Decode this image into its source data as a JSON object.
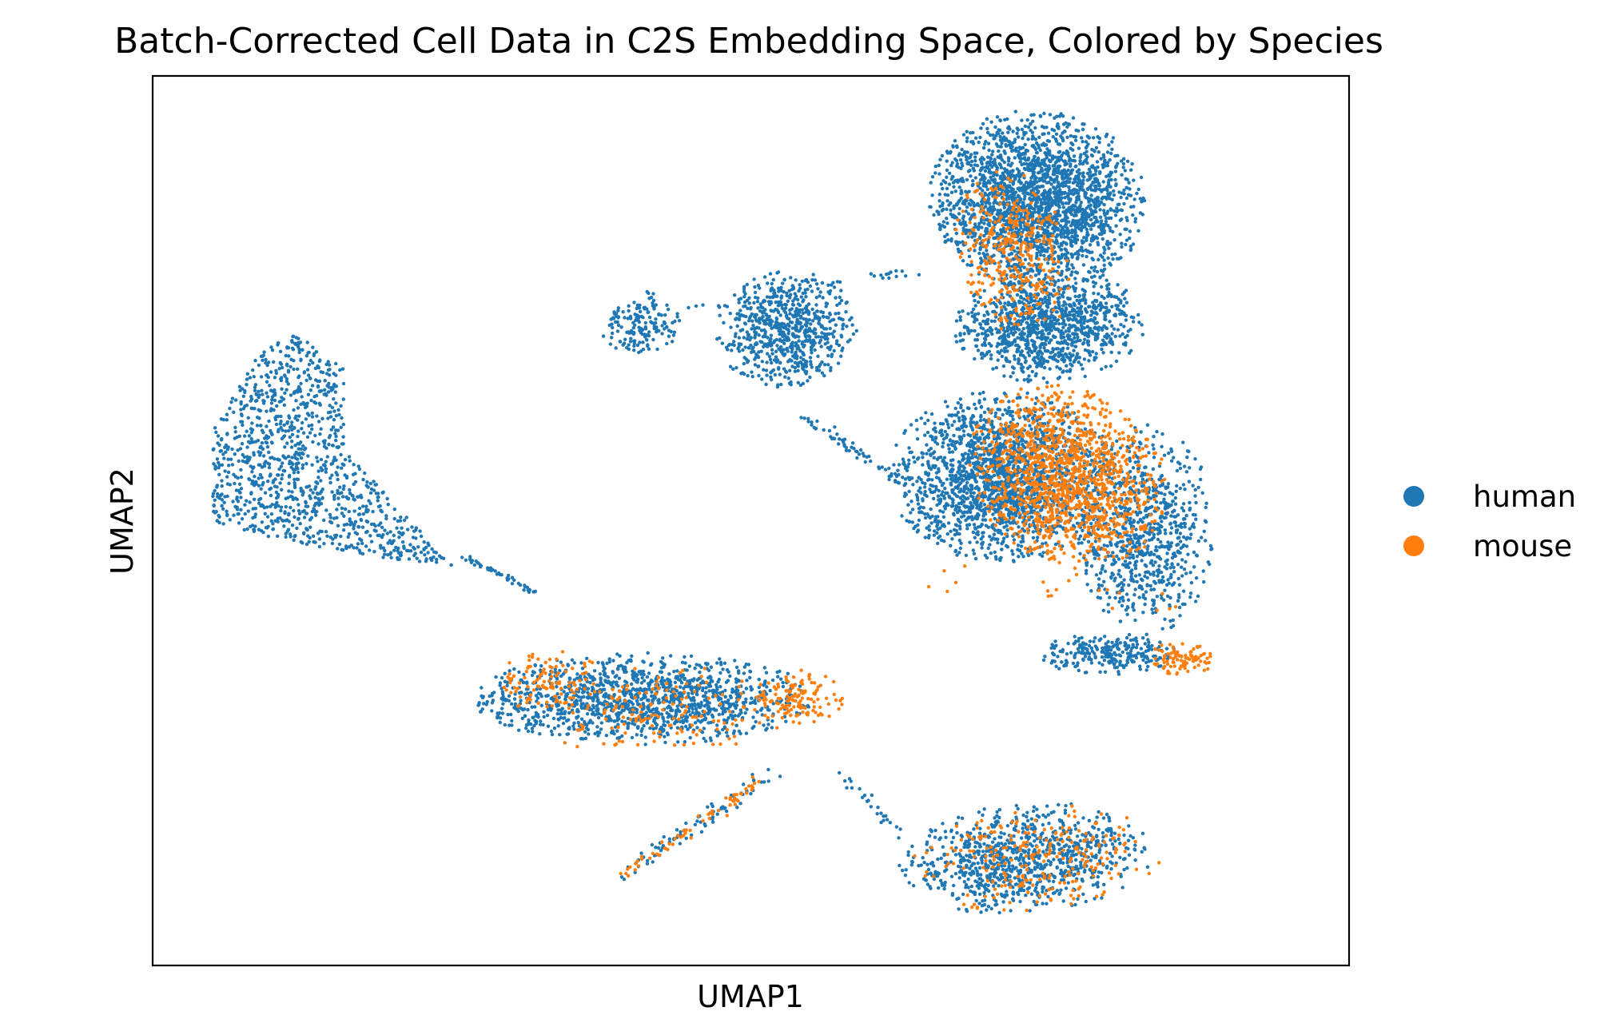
{
  "chart_data": {
    "type": "scatter",
    "title": "Batch-Corrected Cell Data in C2S Embedding Space, Colored by Species",
    "xlabel": "UMAP1",
    "ylabel": "UMAP2",
    "xlim": [
      0,
      100
    ],
    "ylim": [
      0,
      100
    ],
    "x_ticks": "none",
    "y_ticks": "none",
    "grid": false,
    "legend_position": "right",
    "series": [
      {
        "name": "human",
        "color": "#1f77b4"
      },
      {
        "name": "mouse",
        "color": "#ff7f0e"
      }
    ],
    "clusters": [
      {
        "species": "human",
        "n": 1100,
        "shape": "poly",
        "poly": [
          [
            5,
            60
          ],
          [
            9,
            69
          ],
          [
            12,
            71
          ],
          [
            16,
            67
          ],
          [
            16,
            58
          ],
          [
            25,
            45
          ],
          [
            18,
            46
          ],
          [
            10,
            48
          ],
          [
            5,
            50
          ]
        ]
      },
      {
        "species": "human",
        "n": 700,
        "shape": "ellipse",
        "cx": 53,
        "cy": 71.5,
        "rx": 5.5,
        "ry": 6.3,
        "rot": -8
      },
      {
        "species": "human",
        "n": 160,
        "shape": "ellipse",
        "cx": 41,
        "cy": 72,
        "rx": 3.2,
        "ry": 3.6,
        "rot": -25
      },
      {
        "species": "human",
        "n": 30,
        "shape": "line",
        "x1": 45,
        "y1": 74,
        "x2": 64,
        "y2": 78,
        "w": 0.8
      },
      {
        "species": "human",
        "n": 45,
        "shape": "line",
        "x1": 26,
        "y1": 46,
        "x2": 32,
        "y2": 42,
        "w": 0.5
      },
      {
        "species": "human",
        "n": 2300,
        "shape": "ellipse",
        "cx": 74,
        "cy": 86,
        "rx": 8.5,
        "ry": 9.5,
        "rot": 12
      },
      {
        "species": "human",
        "n": 1100,
        "shape": "ellipse",
        "cx": 75,
        "cy": 72,
        "rx": 7.5,
        "ry": 6,
        "rot": 10
      },
      {
        "species": "human",
        "n": 1900,
        "shape": "ellipse",
        "cx": 71,
        "cy": 55,
        "rx": 9,
        "ry": 9,
        "rot": -15
      },
      {
        "species": "human",
        "n": 800,
        "shape": "ellipse",
        "cx": 83,
        "cy": 49,
        "rx": 5.5,
        "ry": 11,
        "rot": 0
      },
      {
        "species": "human",
        "n": 250,
        "shape": "ellipse",
        "cx": 80,
        "cy": 35,
        "rx": 5.5,
        "ry": 2.2,
        "rot": 0
      },
      {
        "species": "human",
        "n": 50,
        "shape": "line",
        "x1": 54,
        "y1": 62,
        "x2": 62,
        "y2": 55,
        "w": 0.8
      },
      {
        "species": "human",
        "n": 1300,
        "shape": "ellipse",
        "cx": 41,
        "cy": 30,
        "rx": 13.5,
        "ry": 4.8,
        "rot": 0
      },
      {
        "species": "human",
        "n": 900,
        "shape": "ellipse",
        "cx": 73,
        "cy": 12,
        "rx": 10,
        "ry": 5.8,
        "rot": 8
      },
      {
        "species": "human",
        "n": 80,
        "shape": "line",
        "x1": 39,
        "y1": 10,
        "x2": 52,
        "y2": 22,
        "w": 1.2
      },
      {
        "species": "human",
        "n": 25,
        "shape": "line",
        "x1": 58,
        "y1": 21,
        "x2": 63,
        "y2": 14,
        "w": 1.0
      },
      {
        "species": "mouse",
        "n": 1300,
        "shape": "ellipse",
        "cx": 76.5,
        "cy": 55,
        "rx": 7.5,
        "ry": 10,
        "rot": 20
      },
      {
        "species": "mouse",
        "n": 350,
        "shape": "ellipse",
        "cx": 72,
        "cy": 80,
        "rx": 4.5,
        "ry": 9,
        "rot": 8
      },
      {
        "species": "mouse",
        "n": 90,
        "shape": "ellipse",
        "cx": 86,
        "cy": 34.5,
        "rx": 2.6,
        "ry": 1.8,
        "rot": 0
      },
      {
        "species": "mouse",
        "n": 100,
        "shape": "ellipse",
        "cx": 33,
        "cy": 32,
        "rx": 4.5,
        "ry": 3.5,
        "rot": 0
      },
      {
        "species": "mouse",
        "n": 160,
        "shape": "ellipse",
        "cx": 42,
        "cy": 29,
        "rx": 11,
        "ry": 5,
        "rot": 0
      },
      {
        "species": "mouse",
        "n": 130,
        "shape": "ellipse",
        "cx": 54,
        "cy": 30,
        "rx": 3.5,
        "ry": 3,
        "rot": 0
      },
      {
        "species": "mouse",
        "n": 65,
        "shape": "line",
        "x1": 39,
        "y1": 10,
        "x2": 51,
        "y2": 21,
        "w": 1.0
      },
      {
        "species": "mouse",
        "n": 240,
        "shape": "ellipse",
        "cx": 74,
        "cy": 12,
        "rx": 10,
        "ry": 5.5,
        "rot": 8
      },
      {
        "species": "mouse",
        "n": 20,
        "shape": "line",
        "x1": 63,
        "y1": 44,
        "x2": 88,
        "y2": 40,
        "w": 3.0
      }
    ]
  }
}
